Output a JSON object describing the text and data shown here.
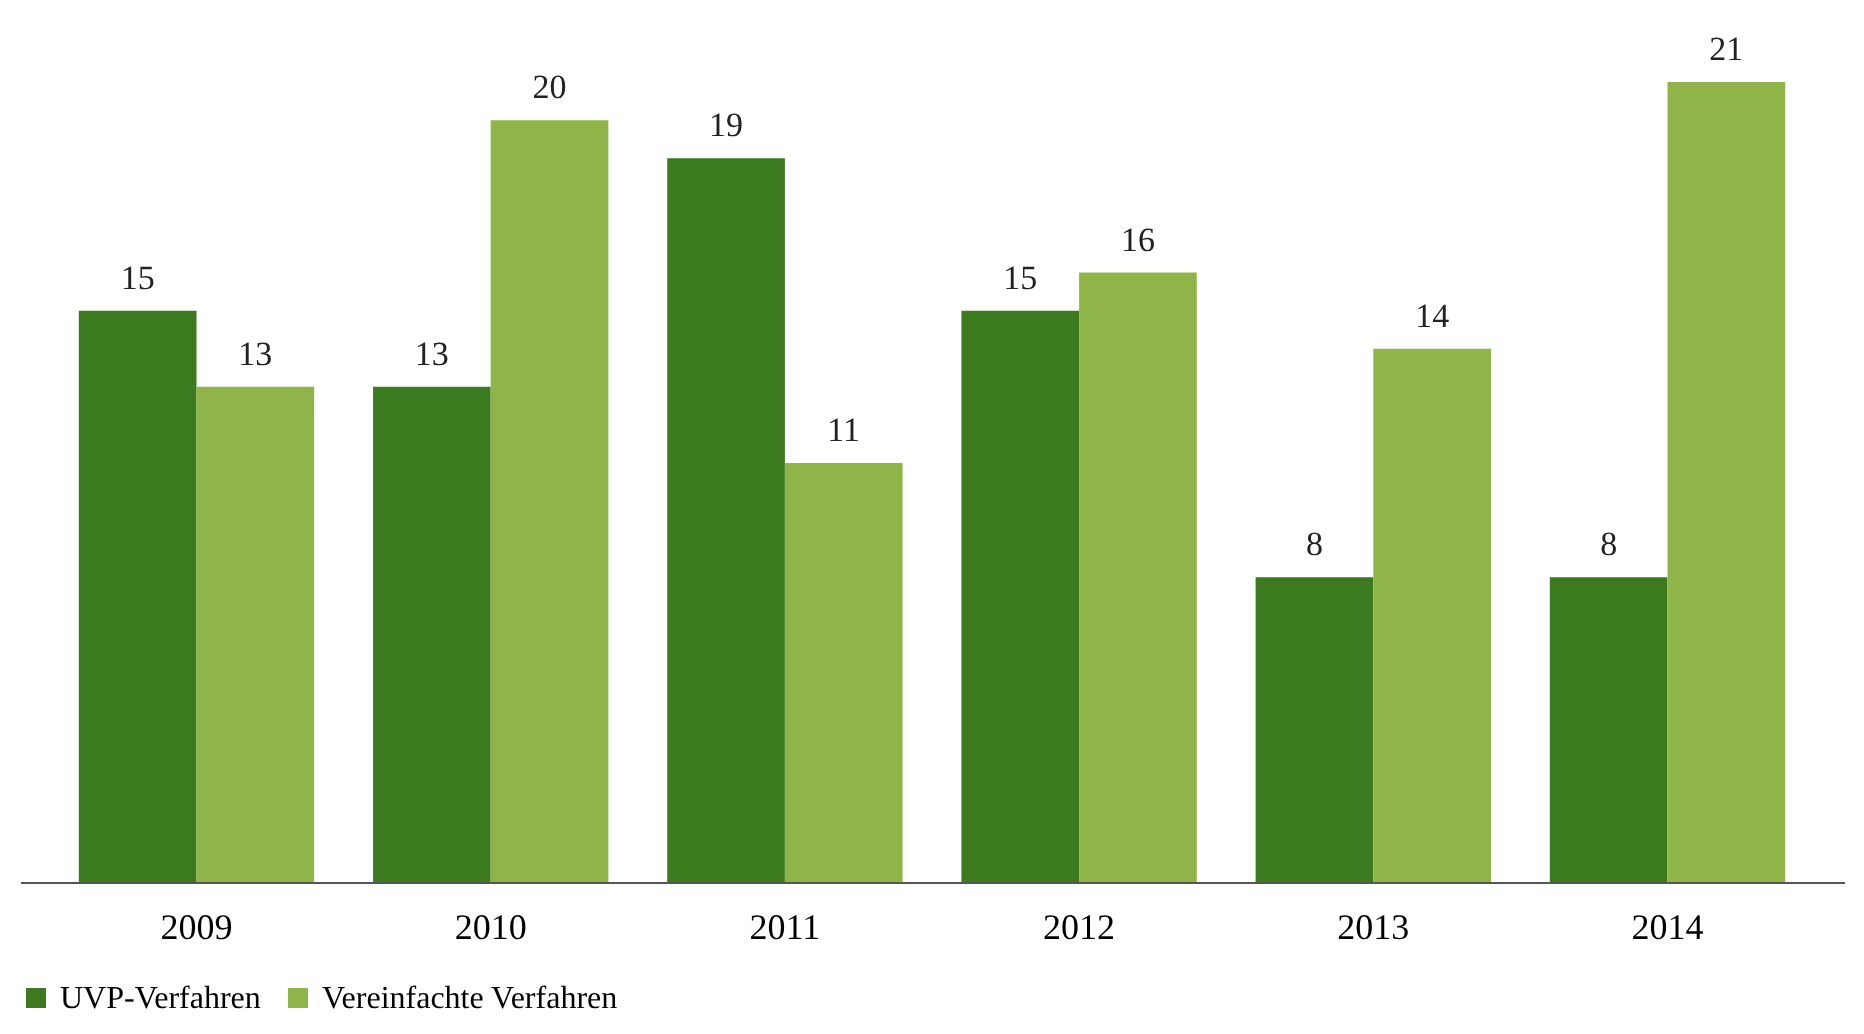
{
  "chart_data": {
    "type": "bar",
    "categories": [
      "2009",
      "2010",
      "2011",
      "2012",
      "2013",
      "2014"
    ],
    "series": [
      {
        "name": "UVP-Verfahren",
        "color": "#3b7a1f",
        "values": [
          15,
          13,
          19,
          15,
          8,
          8
        ]
      },
      {
        "name": "Vereinfachte Verfahren",
        "color": "#8fb548",
        "values": [
          13,
          20,
          11,
          16,
          14,
          21
        ]
      }
    ],
    "data_labels": true,
    "legend": "bottom",
    "grid": false
  }
}
